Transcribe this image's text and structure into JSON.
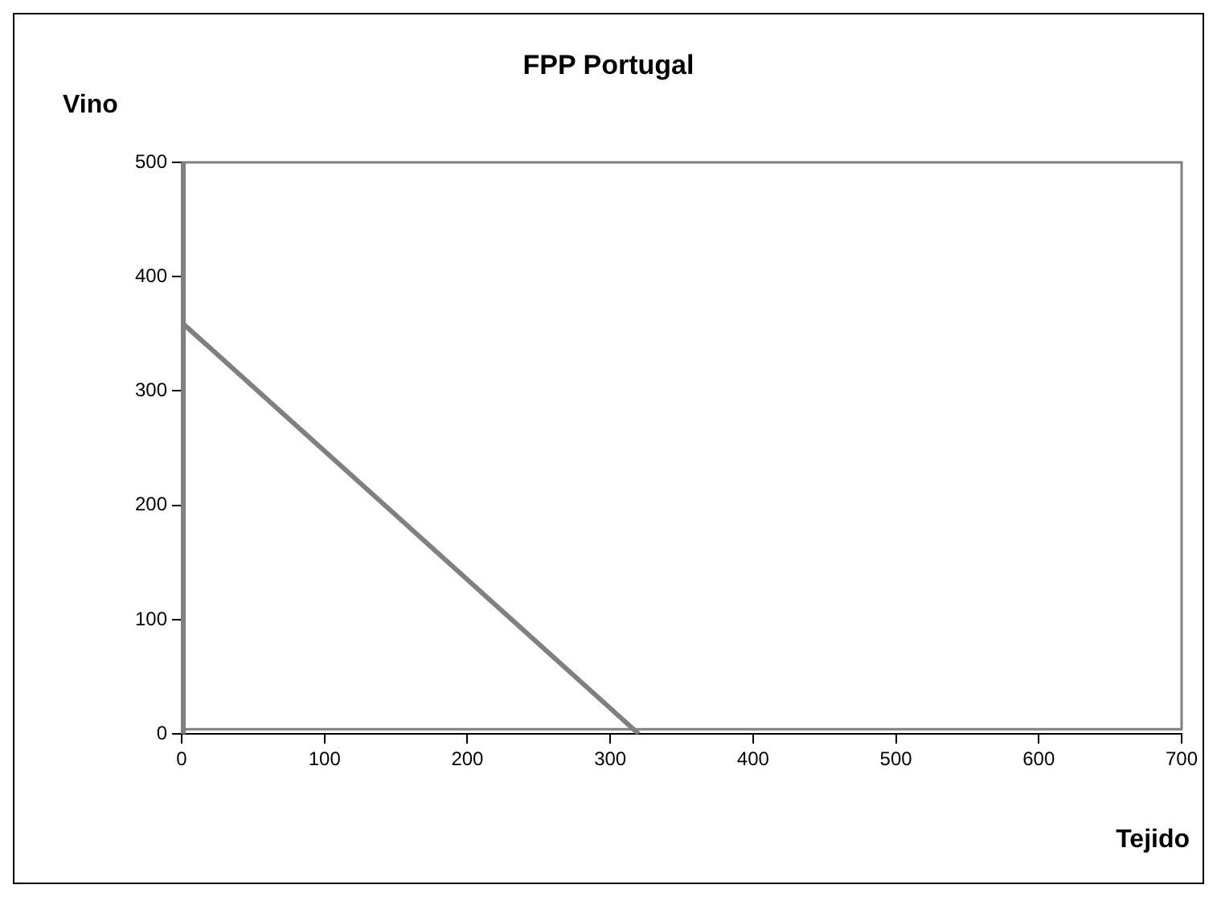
{
  "chart_data": {
    "type": "line",
    "title": "FPP Portugal",
    "xlabel": "Tejido",
    "ylabel": "Vino",
    "x": [
      0,
      320
    ],
    "series": [
      {
        "color": "#808080",
        "values": [
          360,
          0
        ]
      }
    ],
    "xlim": [
      0,
      700
    ],
    "xticks": [
      0,
      100,
      200,
      300,
      400,
      500,
      600,
      700
    ],
    "ylim": [
      0,
      500
    ],
    "yticks": [
      0,
      100,
      200,
      300,
      400,
      500
    ],
    "grid": false,
    "legend": false,
    "marker": "none",
    "line_style": "solid"
  }
}
